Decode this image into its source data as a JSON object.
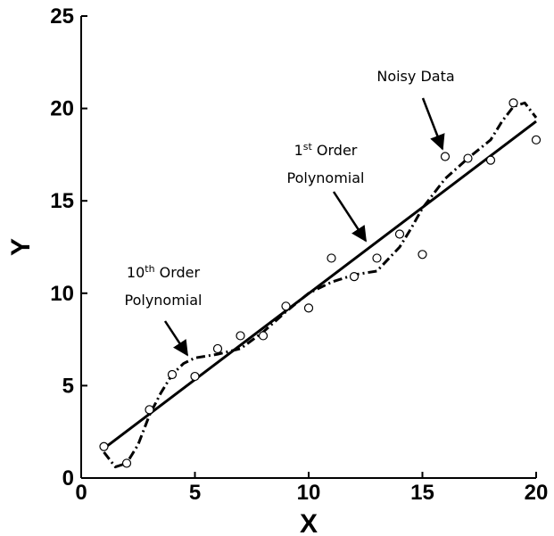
{
  "chart_data": {
    "type": "scatter",
    "title": "",
    "xlabel": "X",
    "ylabel": "Y",
    "xlim": [
      0,
      20
    ],
    "ylim": [
      0,
      25
    ],
    "x_ticks": [
      0,
      5,
      10,
      15,
      20
    ],
    "y_ticks": [
      0,
      5,
      10,
      15,
      20,
      25
    ],
    "grid": false,
    "legend": "none",
    "series": [
      {
        "role": "noisy-data",
        "style": "markers-open-circle",
        "x": [
          1,
          2,
          3,
          4,
          5,
          6,
          7,
          8,
          9,
          10,
          11,
          12,
          13,
          14,
          15,
          16,
          17,
          18,
          19,
          20
        ],
        "y": [
          1.7,
          0.8,
          3.7,
          5.6,
          5.5,
          7.0,
          7.7,
          7.7,
          9.3,
          9.2,
          11.9,
          10.9,
          11.9,
          13.2,
          12.1,
          17.4,
          17.3,
          17.2,
          20.3,
          18.3
        ]
      },
      {
        "role": "first-order-fit",
        "style": "solid-line",
        "x": [
          1,
          20
        ],
        "y": [
          1.6,
          19.3
        ]
      },
      {
        "role": "tenth-order-fit",
        "style": "dash-dot-line",
        "x": [
          1,
          1.5,
          2,
          2.5,
          3,
          3.5,
          4,
          4.5,
          5,
          6,
          7,
          8,
          9,
          10,
          11,
          12,
          13,
          14,
          14.5,
          15,
          16,
          17,
          18,
          18.5,
          19,
          19.5,
          20
        ],
        "y": [
          1.4,
          0.6,
          0.8,
          1.8,
          3.4,
          4.6,
          5.6,
          6.2,
          6.5,
          6.7,
          7.0,
          7.9,
          9.0,
          10.0,
          10.6,
          11.0,
          11.2,
          12.5,
          13.5,
          14.6,
          16.2,
          17.3,
          18.3,
          19.3,
          20.1,
          20.3,
          19.5
        ]
      }
    ],
    "annotations": [
      {
        "text": "Noisy Data",
        "points_to": [
          16,
          17.4
        ]
      },
      {
        "text_base": "1",
        "text_sup": "st",
        "text_rest": " Order",
        "text_line2": "Polynomial",
        "points_to": [
          12.5,
          13.1
        ]
      },
      {
        "text_base": "10",
        "text_sup": "th",
        "text_rest": " Order",
        "text_line2": "Polynomial",
        "points_to": [
          5.8,
          6.2
        ]
      }
    ],
    "colors": {
      "line": "#000000",
      "marker_edge": "#000000",
      "marker_fill": "#ffffff"
    }
  }
}
